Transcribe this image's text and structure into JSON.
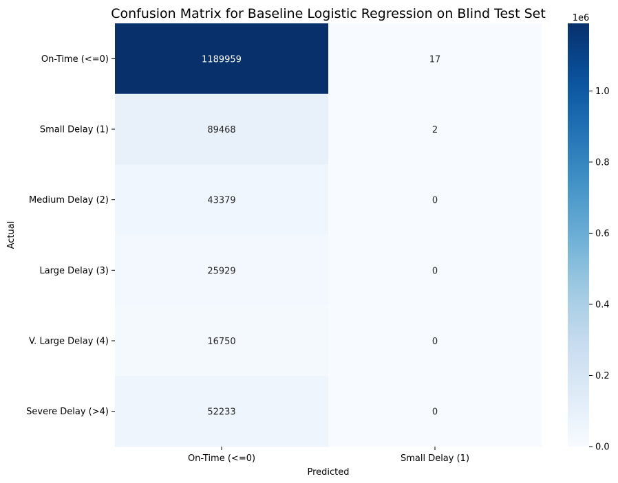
{
  "chart_data": {
    "type": "heatmap",
    "title": "Confusion Matrix for Baseline Logistic Regression on Blind Test Set",
    "xlabel": "Predicted",
    "ylabel": "Actual",
    "x_categories": [
      "On-Time (<=0)",
      "Small Delay (1)"
    ],
    "y_categories": [
      "On-Time (<=0)",
      "Small Delay (1)",
      "Medium Delay (2)",
      "Large Delay (3)",
      "V. Large Delay (4)",
      "Severe Delay (>4)"
    ],
    "values": [
      [
        1189959,
        17
      ],
      [
        89468,
        2
      ],
      [
        43379,
        0
      ],
      [
        25929,
        0
      ],
      [
        16750,
        0
      ],
      [
        52233,
        0
      ]
    ],
    "colormap": "Blues",
    "colorbar": {
      "range": [
        0,
        1189959
      ],
      "tick_values": [
        0.0,
        0.2,
        0.4,
        0.6,
        0.8,
        1.0
      ],
      "tick_labels": [
        "0.0",
        "0.2",
        "0.4",
        "0.6",
        "0.8",
        "1.0"
      ],
      "offset_label": "1e6"
    }
  }
}
